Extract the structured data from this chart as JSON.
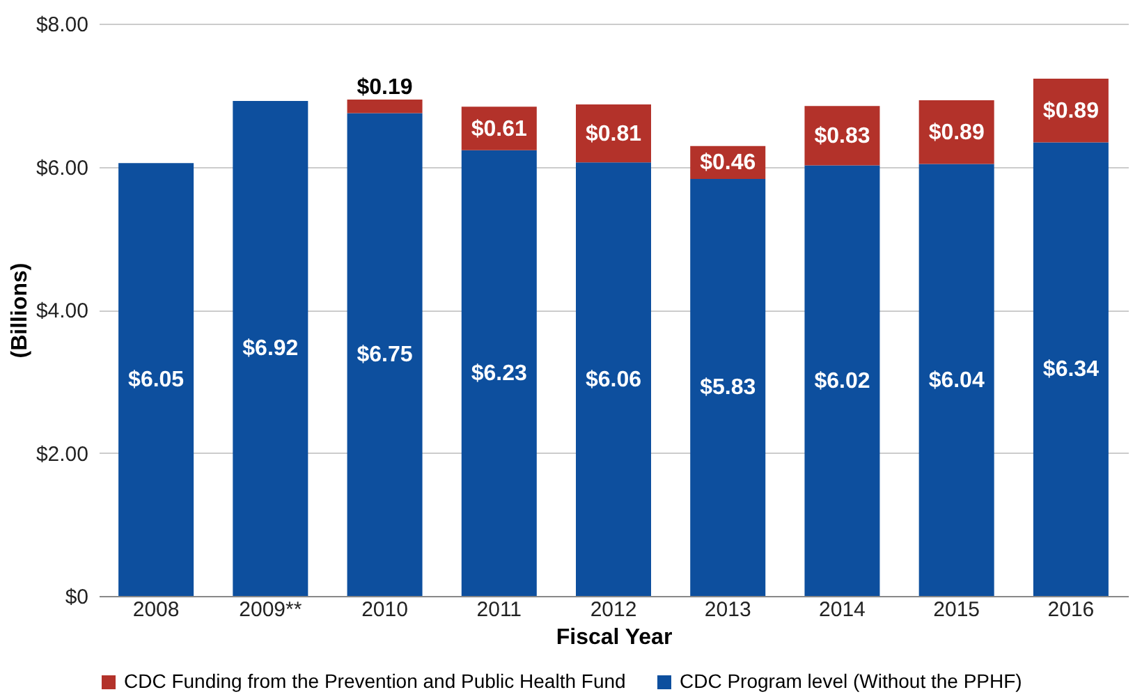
{
  "chart_data": {
    "type": "bar",
    "stacked": true,
    "xlabel": "Fiscal Year",
    "ylabel": "(Billions)",
    "categories": [
      "2008",
      "2009**",
      "2010",
      "2011",
      "2012",
      "2013",
      "2014",
      "2015",
      "2016"
    ],
    "series": [
      {
        "name": "CDC Program level (Without the PPHF)",
        "color": "#0d4f9e",
        "values": [
          6.05,
          6.92,
          6.75,
          6.23,
          6.06,
          5.83,
          6.02,
          6.04,
          6.34
        ],
        "value_labels": [
          "$6.05",
          "$6.92",
          "$6.75",
          "$6.23",
          "$6.06",
          "$5.83",
          "$6.02",
          "$6.04",
          "$6.34"
        ]
      },
      {
        "name": "CDC Funding from the Prevention and Public Health Fund",
        "color": "#b3322a",
        "values": [
          null,
          null,
          0.19,
          0.61,
          0.81,
          0.46,
          0.83,
          0.89,
          0.89
        ],
        "value_labels": [
          null,
          null,
          "$0.19",
          "$0.61",
          "$0.81",
          "$0.46",
          "$0.83",
          "$0.89",
          "$0.89"
        ]
      }
    ],
    "ylim": [
      0,
      8
    ],
    "yticks": [
      {
        "value": 0,
        "label": "$0"
      },
      {
        "value": 2,
        "label": "$2.00"
      },
      {
        "value": 4,
        "label": "$4.00"
      },
      {
        "value": 6,
        "label": "$6.00"
      },
      {
        "value": 8,
        "label": "$8.00"
      }
    ],
    "grid": "y",
    "legend": "bottom"
  }
}
